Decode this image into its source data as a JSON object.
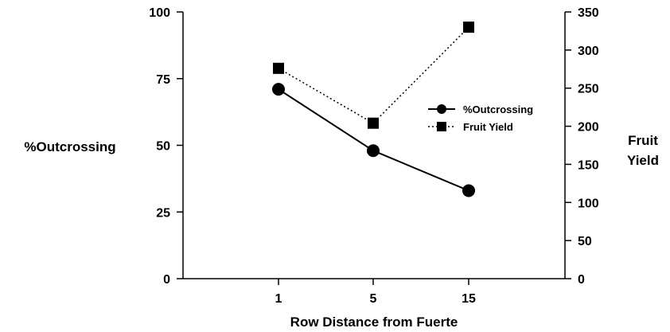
{
  "chart_data": {
    "type": "line",
    "title": "",
    "xlabel": "Row Distance from Fuerte",
    "categories": [
      "1",
      "5",
      "15"
    ],
    "y_left": {
      "label": "%Outcrossing",
      "ylim": [
        0,
        100
      ],
      "ticks": [
        0,
        25,
        50,
        75,
        100
      ]
    },
    "y_right": {
      "label_line1": "Fruit",
      "label_line2": "Yield",
      "ylim": [
        0,
        350
      ],
      "ticks": [
        0,
        50,
        100,
        150,
        200,
        250,
        300,
        350
      ]
    },
    "series": [
      {
        "name": "%Outcrossing",
        "axis": "left",
        "values": [
          71,
          48,
          33
        ],
        "marker": "circle",
        "line": "solid"
      },
      {
        "name": "Fruit Yield",
        "axis": "right",
        "values": [
          276,
          204,
          330
        ],
        "marker": "square",
        "line": "dotted"
      }
    ],
    "legend": "center-right",
    "grid": false,
    "colors": {
      "line": "#000000",
      "background": "#ffffff"
    }
  }
}
